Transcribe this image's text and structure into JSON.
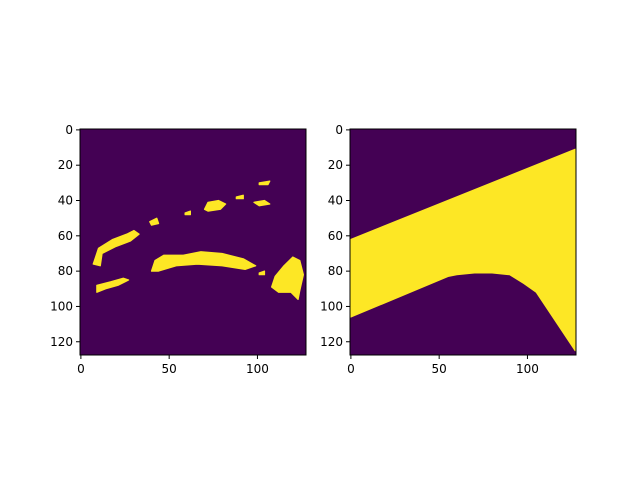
{
  "colors": {
    "background": "#440154",
    "foreground": "#fde725",
    "axis": "#000000",
    "figure_background": "#ffffff"
  },
  "chart_data": [
    {
      "type": "heatmap",
      "description_kind": "binary mask image",
      "image_shape": [
        128,
        128
      ],
      "values_range": [
        0,
        1
      ],
      "xlim": [
        0,
        127
      ],
      "ylim": [
        127,
        0
      ],
      "x_ticks": [
        0,
        50,
        100
      ],
      "y_ticks": [
        0,
        20,
        40,
        60,
        80,
        100,
        120
      ],
      "regions": [
        {
          "points": [
            [
              7,
              76
            ],
            [
              10,
              67
            ],
            [
              18,
              62
            ],
            [
              26,
              59
            ],
            [
              30,
              57
            ],
            [
              33,
              59
            ],
            [
              28,
              63
            ],
            [
              20,
              66
            ],
            [
              12,
              70
            ],
            [
              11,
              77
            ]
          ]
        },
        {
          "points": [
            [
              9,
              88
            ],
            [
              17,
              86
            ],
            [
              24,
              84
            ],
            [
              27,
              85
            ],
            [
              21,
              88
            ],
            [
              14,
              90
            ],
            [
              9,
              92
            ]
          ]
        },
        {
          "points": [
            [
              40,
              80
            ],
            [
              42,
              74
            ],
            [
              47,
              71
            ],
            [
              58,
              71
            ],
            [
              68,
              69
            ],
            [
              80,
              70
            ],
            [
              92,
              73
            ],
            [
              99,
              77
            ],
            [
              93,
              79
            ],
            [
              80,
              77
            ],
            [
              66,
              76
            ],
            [
              54,
              77
            ],
            [
              44,
              80
            ]
          ]
        },
        {
          "points": [
            [
              108,
              89
            ],
            [
              110,
              83
            ],
            [
              115,
              77
            ],
            [
              120,
              72
            ],
            [
              124,
              74
            ],
            [
              126,
              82
            ],
            [
              124,
              91
            ],
            [
              123,
              96
            ],
            [
              119,
              92
            ],
            [
              112,
              92
            ]
          ]
        },
        {
          "points": [
            [
              70,
              45
            ],
            [
              72,
              41
            ],
            [
              78,
              40
            ],
            [
              82,
              42
            ],
            [
              79,
              45
            ],
            [
              72,
              46
            ]
          ]
        },
        {
          "points": [
            [
              98,
              41
            ],
            [
              104,
              40
            ],
            [
              107,
              42
            ],
            [
              101,
              43
            ]
          ]
        },
        {
          "points": [
            [
              101,
              30
            ],
            [
              107,
              29
            ],
            [
              106,
              31
            ],
            [
              101,
              31
            ]
          ]
        },
        {
          "points": [
            [
              39,
              52
            ],
            [
              43,
              50
            ],
            [
              44,
              53
            ],
            [
              40,
              54
            ]
          ]
        },
        {
          "points": [
            [
              59,
              47
            ],
            [
              62,
              46
            ],
            [
              62,
              48
            ],
            [
              59,
              48
            ]
          ]
        },
        {
          "points": [
            [
              88,
              38
            ],
            [
              92,
              37
            ],
            [
              92,
              39
            ],
            [
              88,
              39
            ]
          ]
        },
        {
          "points": [
            [
              101,
              81
            ],
            [
              104,
              80
            ],
            [
              104,
              82
            ],
            [
              101,
              82
            ]
          ]
        }
      ]
    },
    {
      "type": "heatmap",
      "description_kind": "binary mask image",
      "image_shape": [
        128,
        128
      ],
      "values_range": [
        0,
        1
      ],
      "xlim": [
        0,
        127
      ],
      "ylim": [
        127,
        0
      ],
      "x_ticks": [
        0,
        50,
        100
      ],
      "y_ticks": [
        0,
        20,
        40,
        60,
        80,
        100,
        120
      ],
      "regions": [
        {
          "points": [
            [
              0,
              62
            ],
            [
              127,
              11
            ],
            [
              127,
              125
            ],
            [
              105,
              92
            ],
            [
              98,
              87
            ],
            [
              90,
              82
            ],
            [
              80,
              81
            ],
            [
              70,
              81
            ],
            [
              60,
              82
            ],
            [
              55,
              83
            ],
            [
              0,
              106
            ]
          ]
        }
      ]
    }
  ]
}
